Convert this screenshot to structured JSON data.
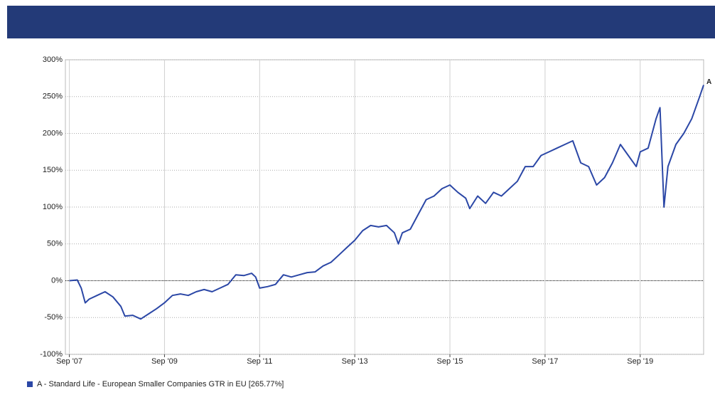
{
  "chart_data": {
    "type": "line",
    "end_label": "A",
    "x": [
      "2007-09",
      "2007-11",
      "2007-12",
      "2008-01",
      "2008-02",
      "2008-04",
      "2008-06",
      "2008-08",
      "2008-10",
      "2008-11",
      "2009-01",
      "2009-03",
      "2009-05",
      "2009-07",
      "2009-09",
      "2009-11",
      "2010-01",
      "2010-03",
      "2010-05",
      "2010-07",
      "2010-09",
      "2010-11",
      "2011-01",
      "2011-03",
      "2011-05",
      "2011-07",
      "2011-08",
      "2011-09",
      "2011-11",
      "2012-01",
      "2012-03",
      "2012-05",
      "2012-07",
      "2012-09",
      "2012-11",
      "2013-01",
      "2013-03",
      "2013-05",
      "2013-07",
      "2013-09",
      "2013-11",
      "2014-01",
      "2014-03",
      "2014-05",
      "2014-07",
      "2014-08",
      "2014-09",
      "2014-11",
      "2015-01",
      "2015-03",
      "2015-05",
      "2015-07",
      "2015-09",
      "2015-11",
      "2016-01",
      "2016-02",
      "2016-04",
      "2016-06",
      "2016-08",
      "2016-10",
      "2016-12",
      "2017-02",
      "2017-04",
      "2017-06",
      "2017-08",
      "2017-10",
      "2017-12",
      "2018-02",
      "2018-04",
      "2018-06",
      "2018-08",
      "2018-10",
      "2018-12",
      "2019-02",
      "2019-04",
      "2019-06",
      "2019-08",
      "2019-09",
      "2019-11",
      "2020-01",
      "2020-02",
      "2020-03",
      "2020-04",
      "2020-06",
      "2020-08",
      "2020-10",
      "2020-12",
      "2021-01"
    ],
    "series": [
      {
        "name": "A - Standard Life - European Smaller Companies GTR in EU [265.77%]",
        "color": "#2b47a6",
        "values": [
          0,
          1,
          -10,
          -30,
          -25,
          -20,
          -15,
          -22,
          -35,
          -48,
          -47,
          -52,
          -45,
          -38,
          -30,
          -20,
          -18,
          -20,
          -15,
          -12,
          -15,
          -10,
          -5,
          8,
          7,
          10,
          5,
          -10,
          -8,
          -5,
          8,
          5,
          8,
          11,
          12,
          20,
          25,
          35,
          45,
          55,
          68,
          75,
          73,
          75,
          65,
          50,
          65,
          70,
          90,
          110,
          115,
          125,
          130,
          120,
          112,
          98,
          115,
          105,
          120,
          115,
          125,
          135,
          155,
          155,
          170,
          175,
          180,
          185,
          190,
          160,
          155,
          130,
          140,
          160,
          185,
          170,
          155,
          175,
          180,
          220,
          235,
          100,
          155,
          185,
          200,
          220,
          250,
          265.77
        ]
      }
    ],
    "xlim": [
      "2007-08",
      "2021-01"
    ],
    "xticks": [
      {
        "value": "2007-09",
        "label": "Sep '07"
      },
      {
        "value": "2009-09",
        "label": "Sep '09"
      },
      {
        "value": "2011-09",
        "label": "Sep '11"
      },
      {
        "value": "2013-09",
        "label": "Sep '13"
      },
      {
        "value": "2015-09",
        "label": "Sep '15"
      },
      {
        "value": "2017-09",
        "label": "Sep '17"
      },
      {
        "value": "2019-09",
        "label": "Sep '19"
      }
    ],
    "ylim": [
      -100,
      300
    ],
    "yticks": [
      {
        "value": -100,
        "label": "-100%"
      },
      {
        "value": -50,
        "label": "-50%"
      },
      {
        "value": 0,
        "label": "0%"
      },
      {
        "value": 50,
        "label": "50%"
      },
      {
        "value": 100,
        "label": "100%"
      },
      {
        "value": 150,
        "label": "150%"
      },
      {
        "value": 200,
        "label": "200%"
      },
      {
        "value": 250,
        "label": "250%"
      },
      {
        "value": 300,
        "label": "300%"
      }
    ],
    "grid": true
  }
}
